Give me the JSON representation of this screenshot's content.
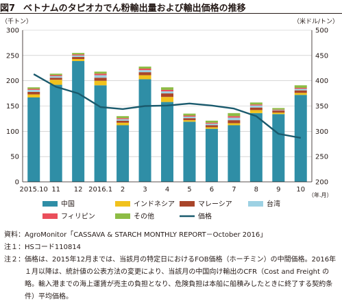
{
  "figure": {
    "number": "図7",
    "title": "ベトナムのタピオカでん粉輸出量および輸出価格の推移"
  },
  "colors": {
    "china": "#2f8ea6",
    "indonesia": "#f1c21d",
    "malaysia": "#a9452a",
    "taiwan": "#9dd1e3",
    "philippines": "#ea4f5b",
    "others": "#8dbc45",
    "price": "#1a5a6d",
    "axis": "#231815",
    "grid": "#bfbfbf"
  },
  "chart_data": {
    "type": "bar",
    "stacked": true,
    "y_left_label": "（千トン）",
    "y_right_label": "（米ドル/トン）",
    "x_unit_label": "（年.月）",
    "ylim_left": [
      0,
      300
    ],
    "ylim_right": [
      200,
      500
    ],
    "y_left_ticks": [
      "0",
      "50",
      "100",
      "150",
      "200",
      "250",
      "300"
    ],
    "y_right_ticks": [
      "200",
      "250",
      "300",
      "350",
      "400",
      "450",
      "500"
    ],
    "categories": [
      "2015.10",
      "11",
      "12",
      "2016.1",
      "2",
      "3",
      "4",
      "5",
      "6",
      "7",
      "8",
      "9",
      "10"
    ],
    "grid_horizontal": true,
    "legend_position": "bottom",
    "series": [
      {
        "name": "中国",
        "key": "china",
        "values": [
          167,
          192,
          239,
          191,
          112,
          203,
          158,
          119,
          105,
          112,
          136,
          134,
          172
        ]
      },
      {
        "name": "インドネシア",
        "key": "indonesia",
        "values": [
          6,
          10,
          4,
          9,
          5,
          8,
          10,
          3,
          3,
          4,
          6,
          3,
          4
        ]
      },
      {
        "name": "マレーシア",
        "key": "malaysia",
        "values": [
          5,
          4,
          4,
          6,
          4,
          6,
          7,
          4,
          4,
          6,
          5,
          4,
          5
        ]
      },
      {
        "name": "台湾",
        "key": "taiwan",
        "values": [
          4,
          3,
          3,
          5,
          3,
          4,
          4,
          3,
          3,
          5,
          4,
          1,
          3
        ]
      },
      {
        "name": "フィリピン",
        "key": "philippines",
        "values": [
          2,
          2,
          2,
          3,
          2,
          3,
          3,
          2,
          2,
          3,
          2,
          1,
          2
        ]
      },
      {
        "name": "その他",
        "key": "others",
        "values": [
          3,
          3,
          3,
          4,
          4,
          4,
          5,
          4,
          4,
          6,
          4,
          3,
          5
        ]
      }
    ],
    "line": {
      "name": "価格",
      "key": "price",
      "axis": "right",
      "values": [
        413,
        388,
        375,
        348,
        344,
        350,
        351,
        355,
        351,
        345,
        330,
        295,
        287
      ]
    },
    "legend_order": [
      "china",
      "indonesia",
      "malaysia",
      "taiwan",
      "philippines",
      "others",
      "price"
    ]
  },
  "notes": [
    {
      "label": "資料：",
      "text": "AgroMonitor「CASSAVA & STARCH MONTHLY REPORT－October 2016」"
    },
    {
      "label": "注１：",
      "text": "HSコード110814"
    },
    {
      "label": "注２：",
      "text": "価格は、2015年12月までは、当該月の特定日におけるFOB価格（ホーチミン）の中間価格。2016年１月以降は、統計値の公表方法の変更により、当該月の中国向け輸出のCFR（Cost and Freight の略。輸入港までの海上運賃が売主の負担となり、危険負担は本船に船積みしたときに終了する契約条件）平均価格。"
    }
  ]
}
